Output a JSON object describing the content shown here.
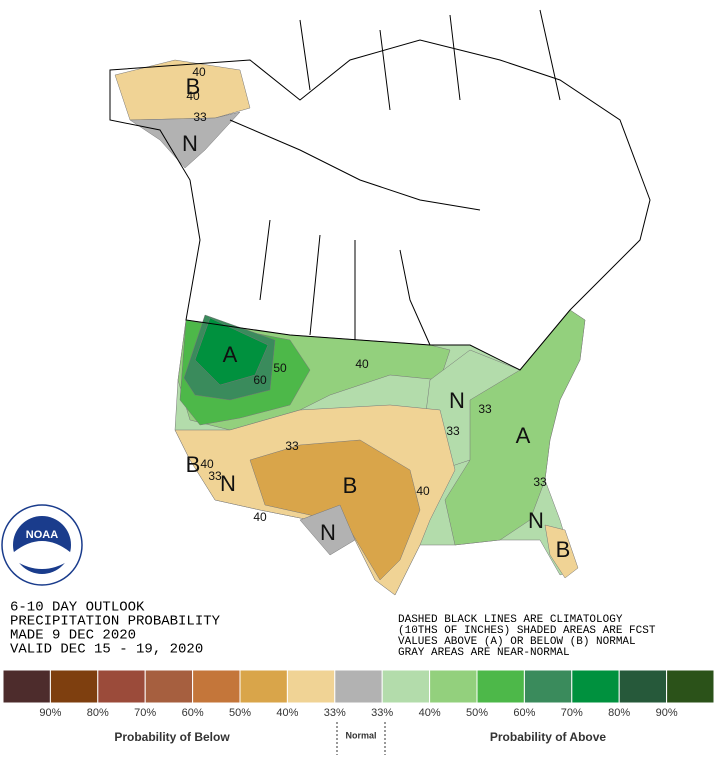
{
  "header": {
    "lines": [
      "6-10 DAY OUTLOOK",
      "PRECIPITATION PROBABILITY",
      "MADE  9 DEC 2020",
      "VALID  DEC 15 - 19, 2020"
    ]
  },
  "notes": [
    "DASHED BLACK LINES ARE CLIMATOLOGY",
    "(10THS OF INCHES) SHADED AREAS ARE FCST",
    "VALUES ABOVE (A) OR BELOW (B) NORMAL",
    "GRAY AREAS ARE NEAR-NORMAL"
  ],
  "logo": {
    "text": "NOAA"
  },
  "map": {
    "region_labels": [
      "B",
      "N",
      "A",
      "B",
      "N",
      "B",
      "N",
      "N",
      "A",
      "N",
      "B"
    ],
    "contour_labels": [
      "40",
      "40",
      "33",
      "60",
      "50",
      "40",
      "33",
      "33",
      "33",
      "40",
      "33",
      "40",
      "40",
      "33"
    ]
  },
  "legend": {
    "colors": [
      "#4d2c2c",
      "#7e3f0f",
      "#9b4b3a",
      "#a65f3f",
      "#c4763a",
      "#d9a54a",
      "#f0d395",
      "#b2b2b2",
      "#b3dcab",
      "#93d07d",
      "#4db849",
      "#3a8b5c",
      "#00913e",
      "#26593a",
      "#2b5219"
    ],
    "labels": [
      "90%",
      "80%",
      "70%",
      "60%",
      "50%",
      "40%",
      "33%",
      "33%",
      "40%",
      "50%",
      "60%",
      "70%",
      "80%",
      "90%"
    ],
    "below_title": "Probability of Below",
    "normal_title": "Normal",
    "above_title": "Probability of Above"
  }
}
